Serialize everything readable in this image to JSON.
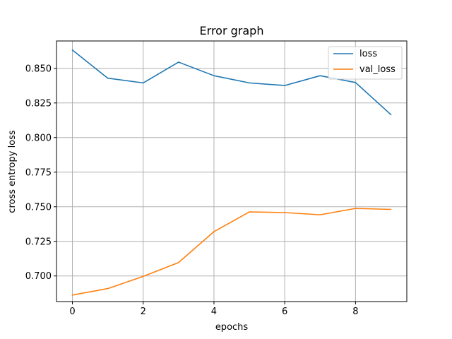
{
  "chart_data": {
    "type": "line",
    "title": "Error graph",
    "xlabel": "epochs",
    "ylabel": "cross entropy loss",
    "x": [
      0,
      1,
      2,
      3,
      4,
      5,
      6,
      7,
      8,
      9
    ],
    "xlim": [
      -0.45,
      9.45
    ],
    "ylim": [
      0.6815,
      0.8698
    ],
    "xticks": [
      0,
      2,
      4,
      6,
      8
    ],
    "xtick_labels": [
      "0",
      "2",
      "4",
      "6",
      "8"
    ],
    "yticks": [
      0.7,
      0.725,
      0.75,
      0.775,
      0.8,
      0.825,
      0.85
    ],
    "ytick_labels": [
      "0.700",
      "0.725",
      "0.750",
      "0.775",
      "0.800",
      "0.825",
      "0.850"
    ],
    "grid": true,
    "legend_position": "top-right",
    "series": [
      {
        "name": "loss",
        "color": "#1f77b4",
        "values": [
          0.8632,
          0.8429,
          0.8395,
          0.8545,
          0.8447,
          0.8395,
          0.8376,
          0.8447,
          0.8398,
          0.8166
        ]
      },
      {
        "name": "val_loss",
        "color": "#ff7f0e",
        "values": [
          0.6862,
          0.6909,
          0.6997,
          0.7097,
          0.732,
          0.7463,
          0.7458,
          0.7442,
          0.7488,
          0.7481
        ]
      }
    ]
  }
}
